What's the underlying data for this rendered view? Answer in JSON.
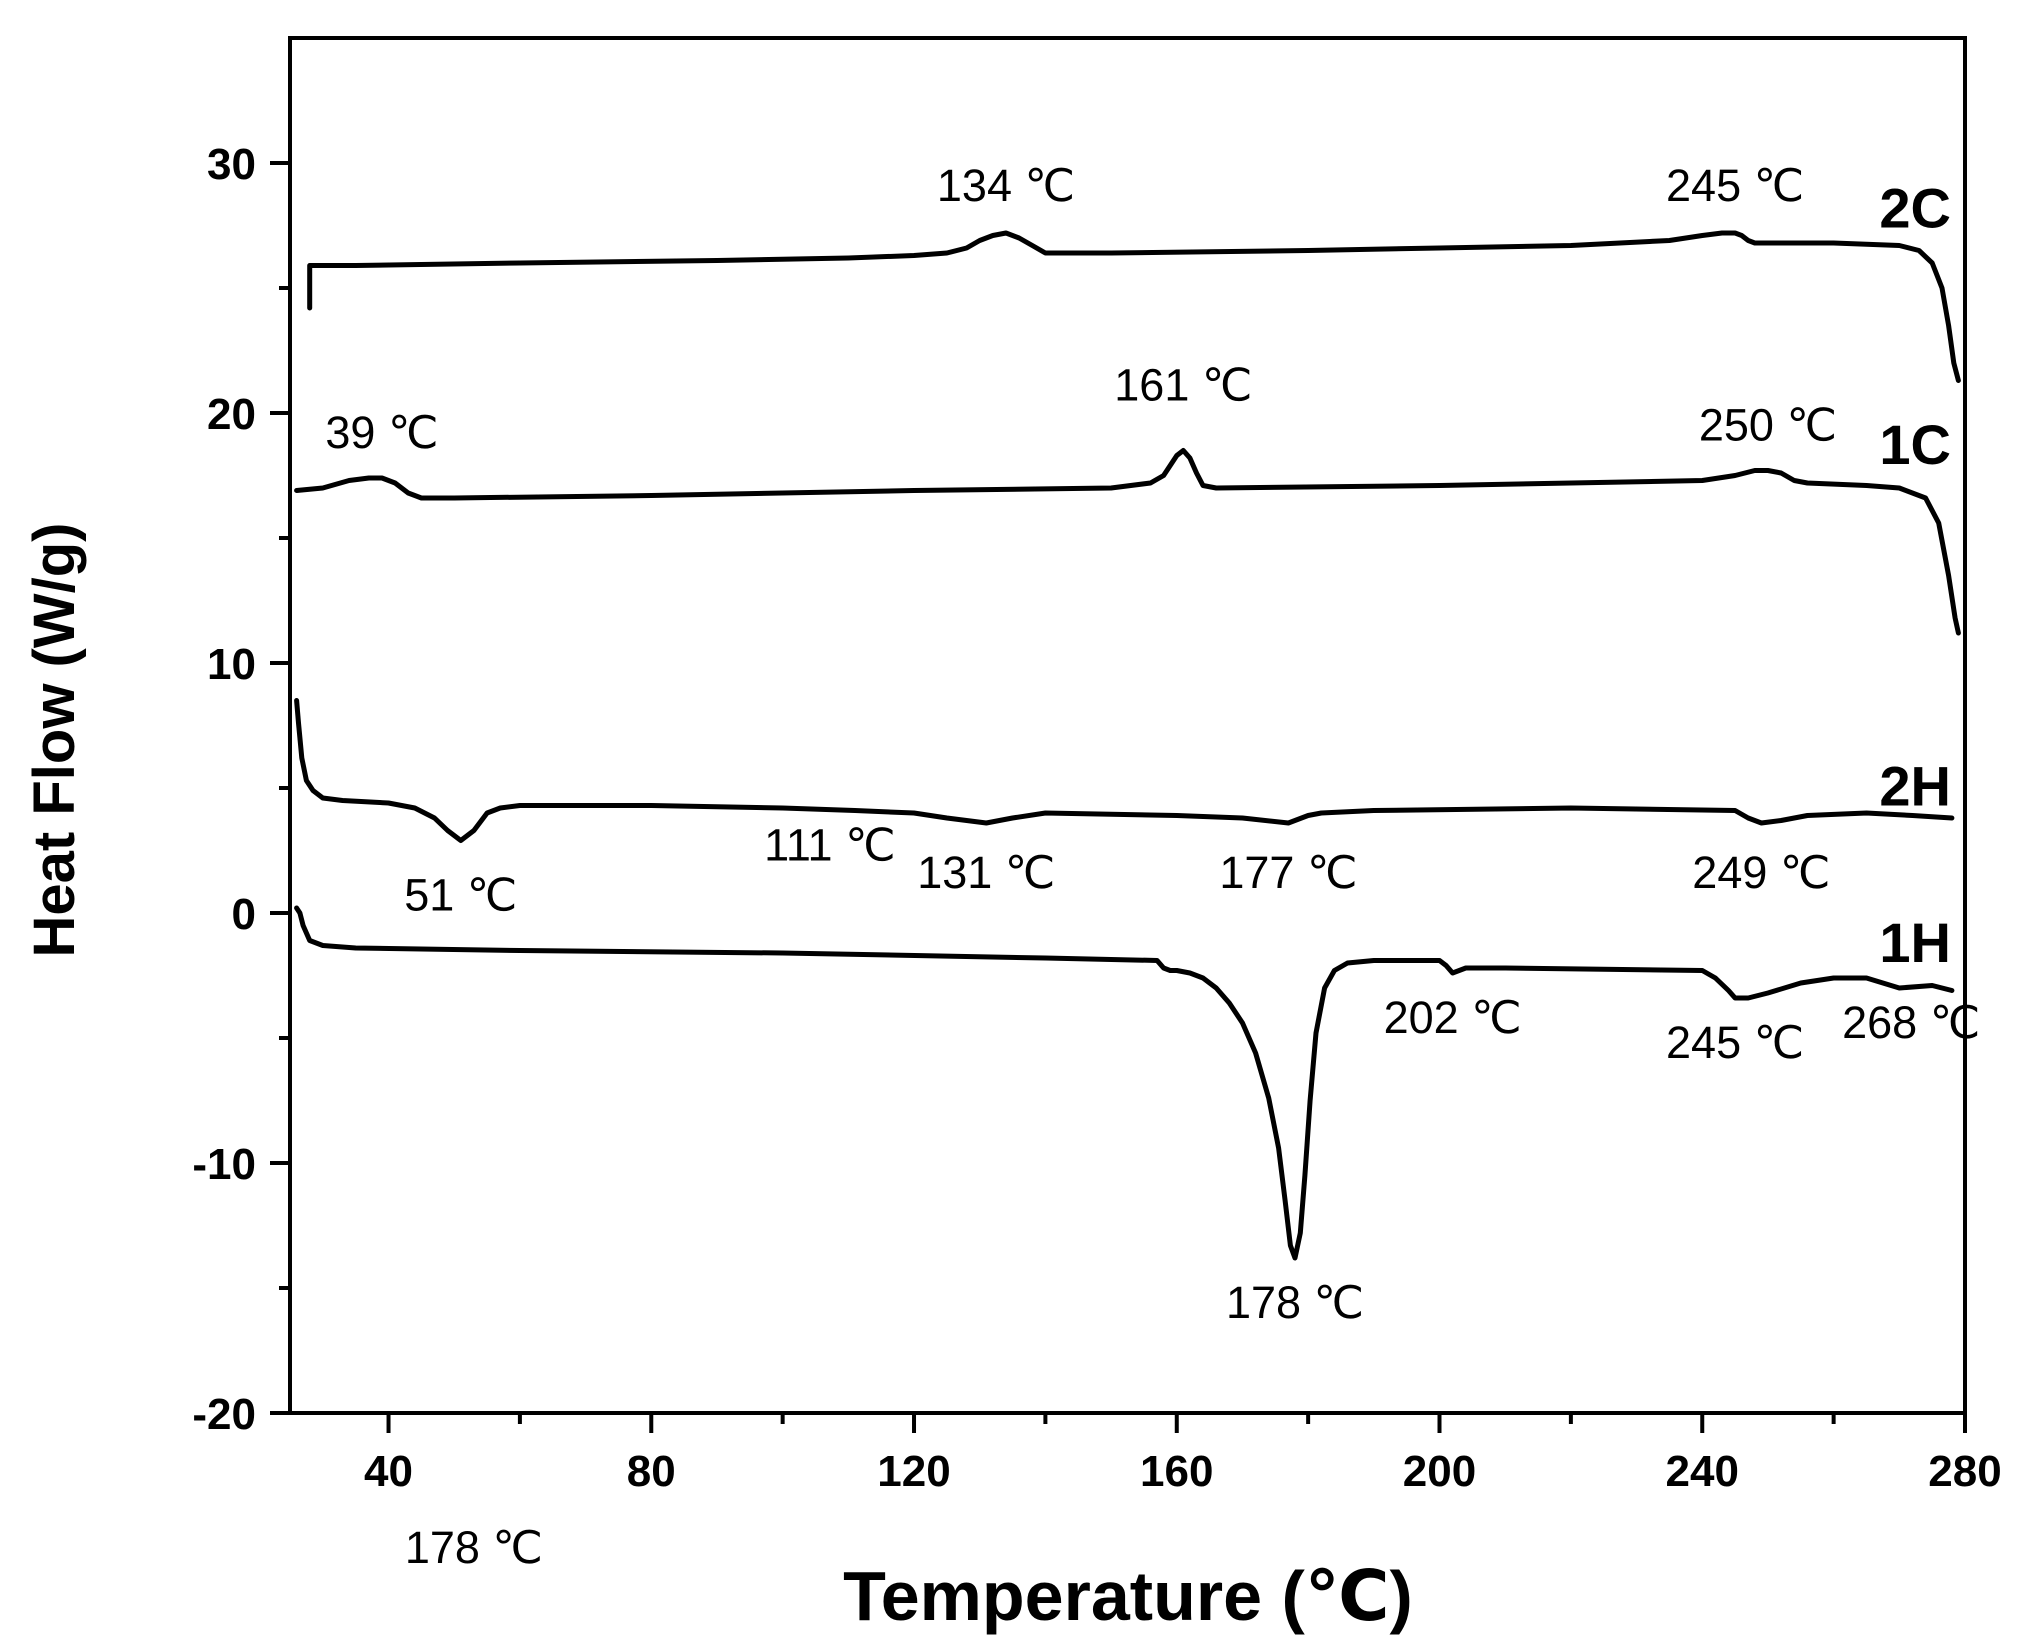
{
  "chart_data": {
    "type": "line",
    "title": "",
    "xlabel": "Temperature (℃)",
    "ylabel": "Heat Flow (W/g)",
    "xlim": [
      25,
      280
    ],
    "ylim": [
      -20,
      35
    ],
    "xticks": [
      40,
      80,
      120,
      160,
      200,
      240,
      280
    ],
    "xticks_minor": [
      60,
      100,
      140,
      180,
      220,
      260
    ],
    "yticks": [
      -20,
      -10,
      0,
      10,
      20,
      30
    ],
    "yticks_minor": [
      -15,
      -5,
      5,
      15,
      25
    ],
    "grid": false,
    "line_color": "#000000",
    "series": [
      {
        "name": "2C",
        "x": [
          28,
          28,
          35,
          60,
          90,
          110,
          120,
          125,
          128,
          130,
          132,
          134,
          136,
          138,
          140,
          150,
          180,
          200,
          220,
          235,
          240,
          243,
          245,
          246,
          247,
          248,
          250,
          260,
          270,
          273,
          275,
          276.5,
          277.5,
          278.3,
          279
        ],
        "y": [
          24.2,
          25.9,
          25.9,
          26.0,
          26.1,
          26.2,
          26.3,
          26.4,
          26.6,
          26.9,
          27.1,
          27.2,
          27.0,
          26.7,
          26.4,
          26.4,
          26.5,
          26.6,
          26.7,
          26.9,
          27.1,
          27.2,
          27.2,
          27.1,
          26.9,
          26.8,
          26.8,
          26.8,
          26.7,
          26.5,
          26.0,
          25.0,
          23.5,
          22.0,
          21.3
        ],
        "annotations": [
          {
            "x": 134,
            "y": 27.2,
            "text": "134 ℃"
          },
          {
            "x": 245,
            "y": 27.2,
            "text": "245 ℃"
          }
        ]
      },
      {
        "name": "1C",
        "x": [
          26,
          30,
          34,
          37,
          39,
          41,
          43,
          45,
          50,
          80,
          120,
          150,
          156,
          158,
          159,
          160,
          161,
          162,
          163,
          164,
          166,
          200,
          240,
          245,
          248,
          250,
          252,
          254,
          256,
          265,
          270,
          274,
          276,
          277.5,
          278.5,
          279
        ],
        "y": [
          16.9,
          17.0,
          17.3,
          17.4,
          17.4,
          17.2,
          16.8,
          16.6,
          16.6,
          16.7,
          16.9,
          17.0,
          17.2,
          17.5,
          17.9,
          18.3,
          18.5,
          18.2,
          17.6,
          17.1,
          17.0,
          17.1,
          17.3,
          17.5,
          17.7,
          17.7,
          17.6,
          17.3,
          17.2,
          17.1,
          17.0,
          16.6,
          15.6,
          13.5,
          11.8,
          11.2
        ],
        "annotations": [
          {
            "x": 39,
            "y": 17.4,
            "text": "39 ℃"
          },
          {
            "x": 161,
            "y": 18.5,
            "text": "161 ℃"
          },
          {
            "x": 250,
            "y": 17.7,
            "text": "250 ℃"
          }
        ]
      },
      {
        "name": "2H",
        "x": [
          26,
          26.3,
          26.8,
          27.5,
          28.5,
          30,
          33,
          40,
          44,
          47,
          49,
          51,
          53,
          55,
          57,
          60,
          80,
          100,
          111,
          120,
          125,
          131,
          135,
          140,
          160,
          170,
          177,
          180,
          182,
          190,
          220,
          245,
          247,
          249,
          252,
          256,
          265,
          272,
          278
        ],
        "y": [
          8.5,
          7.6,
          6.2,
          5.3,
          4.9,
          4.6,
          4.5,
          4.4,
          4.2,
          3.8,
          3.3,
          2.9,
          3.3,
          4.0,
          4.2,
          4.3,
          4.3,
          4.2,
          4.1,
          4.0,
          3.8,
          3.6,
          3.8,
          4.0,
          3.9,
          3.8,
          3.6,
          3.9,
          4.0,
          4.1,
          4.2,
          4.1,
          3.8,
          3.6,
          3.7,
          3.9,
          4.0,
          3.9,
          3.8
        ],
        "annotations": [
          {
            "x": 51,
            "y": 2.9,
            "text": "51 ℃"
          },
          {
            "x": 111,
            "y": 4.1,
            "text": "111 ℃"
          },
          {
            "x": 131,
            "y": 3.6,
            "text": "131 ℃"
          },
          {
            "x": 177,
            "y": 3.6,
            "text": "177 ℃"
          },
          {
            "x": 249,
            "y": 3.6,
            "text": "249 ℃"
          }
        ]
      },
      {
        "name": "1H",
        "x": [
          26,
          26.5,
          27,
          28,
          30,
          35,
          60,
          100,
          140,
          157,
          158,
          159,
          160,
          162,
          164,
          166,
          168,
          170,
          172,
          174,
          175.5,
          176.5,
          177.3,
          178,
          178.8,
          179.5,
          180.3,
          181.2,
          182.5,
          184,
          186,
          190,
          200,
          201,
          202,
          203,
          204,
          210,
          240,
          242,
          244,
          245,
          247,
          250,
          255,
          260,
          265,
          270,
          275,
          278
        ],
        "y": [
          0.2,
          0.0,
          -0.5,
          -1.1,
          -1.3,
          -1.4,
          -1.5,
          -1.6,
          -1.8,
          -1.9,
          -2.2,
          -2.3,
          -2.3,
          -2.4,
          -2.6,
          -3.0,
          -3.6,
          -4.4,
          -5.6,
          -7.4,
          -9.4,
          -11.5,
          -13.3,
          -13.8,
          -12.8,
          -10.5,
          -7.5,
          -4.8,
          -3.0,
          -2.3,
          -2.0,
          -1.9,
          -1.9,
          -2.1,
          -2.4,
          -2.3,
          -2.2,
          -2.2,
          -2.3,
          -2.6,
          -3.1,
          -3.4,
          -3.4,
          -3.2,
          -2.8,
          -2.6,
          -2.6,
          -3.0,
          -2.9,
          -3.1
        ],
        "annotations": [
          {
            "x": 178,
            "y": -13.8,
            "text": "178 ℃"
          },
          {
            "x": 202,
            "y": -2.4,
            "text": "202 ℃"
          },
          {
            "x": 245,
            "y": -3.4,
            "text": "245 ℃"
          },
          {
            "x": 268,
            "y": -3.0,
            "text": "268 ℃"
          }
        ]
      }
    ],
    "extra_annotations": [
      {
        "x": 53,
        "text": "178 ℃"
      }
    ]
  }
}
